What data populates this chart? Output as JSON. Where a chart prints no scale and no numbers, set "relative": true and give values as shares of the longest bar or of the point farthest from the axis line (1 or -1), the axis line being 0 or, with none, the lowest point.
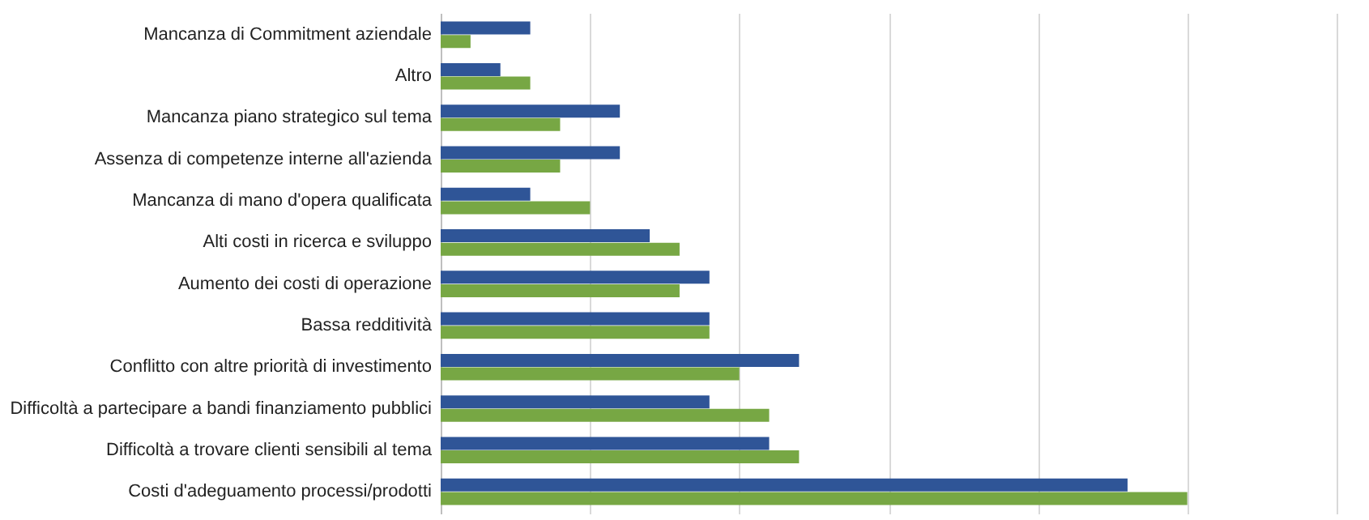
{
  "chart_data": {
    "type": "bar",
    "orientation": "horizontal",
    "relative": true,
    "grid": "x",
    "categories": [
      "Mancanza di Commitment aziendale",
      "Altro",
      "Mancanza piano strategico sul tema",
      "Assenza di competenze interne all'azienda",
      "Mancanza di mano d'opera qualificata",
      "Alti costi in ricerca e sviluppo",
      "Aumento dei costi di operazione",
      "Bassa redditività",
      "Conflitto con altre priorità di investimento",
      "Difficoltà a partecipare a bandi finanziamento pubblici",
      "Difficoltà a trovare clienti sensibili al tema",
      "Costi d'adeguamento processi/prodotti"
    ],
    "series": [
      {
        "color": "#2f5597",
        "values": [
          0.12,
          0.08,
          0.24,
          0.24,
          0.12,
          0.28,
          0.36,
          0.36,
          0.48,
          0.36,
          0.44,
          0.92
        ]
      },
      {
        "color": "#77a744",
        "values": [
          0.04,
          0.12,
          0.16,
          0.16,
          0.2,
          0.32,
          0.32,
          0.36,
          0.4,
          0.44,
          0.48,
          1.0
        ]
      }
    ]
  }
}
